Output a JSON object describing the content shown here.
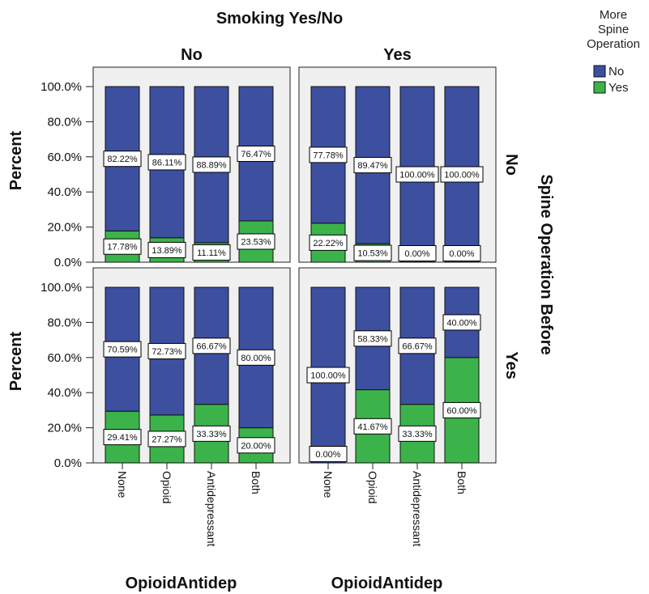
{
  "chart_data": {
    "type": "bar",
    "stacked": true,
    "title": "Smoking Yes/No",
    "column_facet": {
      "title": "Smoking Yes/No",
      "levels": [
        "No",
        "Yes"
      ]
    },
    "row_facet": {
      "title": "Spine Operation Before",
      "levels": [
        "No",
        "Yes"
      ]
    },
    "xlabel": "OpioidAntidep",
    "ylabel": "Percent",
    "categories": [
      "None",
      "Opioid",
      "Antidepressant",
      "Both"
    ],
    "yticks": [
      "0.0%",
      "20.0%",
      "40.0%",
      "60.0%",
      "80.0%",
      "100.0%"
    ],
    "ylim": [
      0,
      100
    ],
    "legend": {
      "title": "More Spine Operation",
      "title_lines": [
        "More",
        "Spine",
        "Operation"
      ],
      "position": "top-right",
      "entries": [
        {
          "name": "No",
          "color": "#3d4f9f"
        },
        {
          "name": "Yes",
          "color": "#3cb34a"
        }
      ]
    },
    "panels": [
      {
        "row": "No",
        "col": "No",
        "series": [
          {
            "name": "No",
            "values": [
              82.22,
              86.11,
              88.89,
              76.47
            ],
            "labels": [
              "82.22%",
              "86.11%",
              "88.89%",
              "76.47%"
            ]
          },
          {
            "name": "Yes",
            "values": [
              17.78,
              13.89,
              11.11,
              23.53
            ],
            "labels": [
              "17.78%",
              "13.89%",
              "11.11%",
              "23.53%"
            ]
          }
        ]
      },
      {
        "row": "No",
        "col": "Yes",
        "series": [
          {
            "name": "No",
            "values": [
              77.78,
              89.47,
              100.0,
              100.0
            ],
            "labels": [
              "77.78%",
              "89.47%",
              "100.00%",
              "100.00%"
            ]
          },
          {
            "name": "Yes",
            "values": [
              22.22,
              10.53,
              0.0,
              0.0
            ],
            "labels": [
              "22.22%",
              "10.53%",
              "0.00%",
              "0.00%"
            ]
          }
        ]
      },
      {
        "row": "Yes",
        "col": "No",
        "series": [
          {
            "name": "No",
            "values": [
              70.59,
              72.73,
              66.67,
              80.0
            ],
            "labels": [
              "70.59%",
              "72.73%",
              "66.67%",
              "80.00%"
            ]
          },
          {
            "name": "Yes",
            "values": [
              29.41,
              27.27,
              33.33,
              20.0
            ],
            "labels": [
              "29.41%",
              "27.27%",
              "33.33%",
              "20.00%"
            ]
          }
        ]
      },
      {
        "row": "Yes",
        "col": "Yes",
        "series": [
          {
            "name": "No",
            "values": [
              100.0,
              58.33,
              66.67,
              40.0
            ],
            "labels": [
              "100.00%",
              "58.33%",
              "66.67%",
              "40.00%"
            ]
          },
          {
            "name": "Yes",
            "values": [
              0.0,
              41.67,
              33.33,
              60.0
            ],
            "labels": [
              "0.00%",
              "41.67%",
              "33.33%",
              "60.00%"
            ]
          }
        ]
      }
    ]
  }
}
